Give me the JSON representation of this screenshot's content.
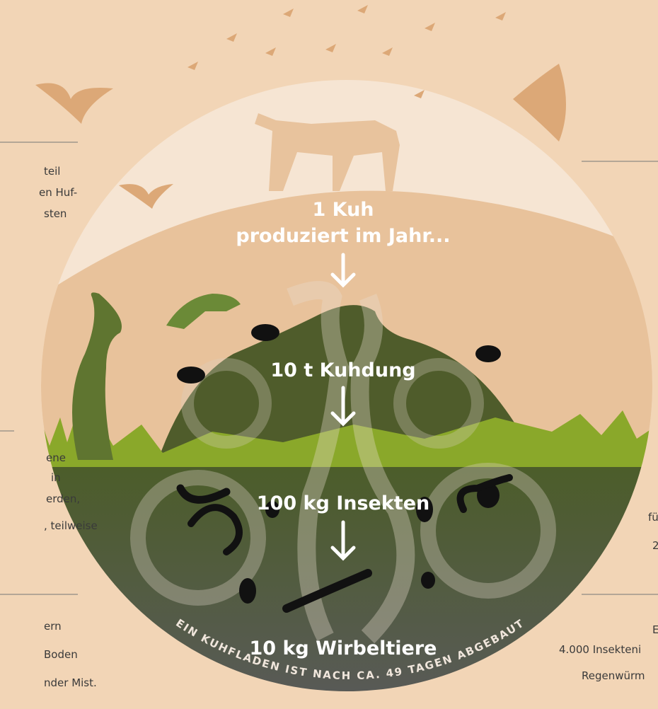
{
  "left_notes": [
    [
      "teil",
      "en Huf-",
      "sten"
    ],
    [
      "ene",
      "in",
      "erden,",
      ", teilweise"
    ],
    [
      "ern",
      "Boden",
      "nder Mist."
    ]
  ],
  "right_notes": [
    [
      "fü",
      "2"
    ],
    [
      "E",
      "4.000 Insekteni",
      "Regenwürm"
    ]
  ],
  "center_steps": [
    "1 Kuh",
    "produziert im Jahr...",
    "10 t Kuhdung",
    "100 kg Insekten",
    "10 kg Wirbeltiere"
  ],
  "arc_caption": "EIN KUHFLADEN IST NACH CA. 49 TAGEN ABGEBAUT"
}
